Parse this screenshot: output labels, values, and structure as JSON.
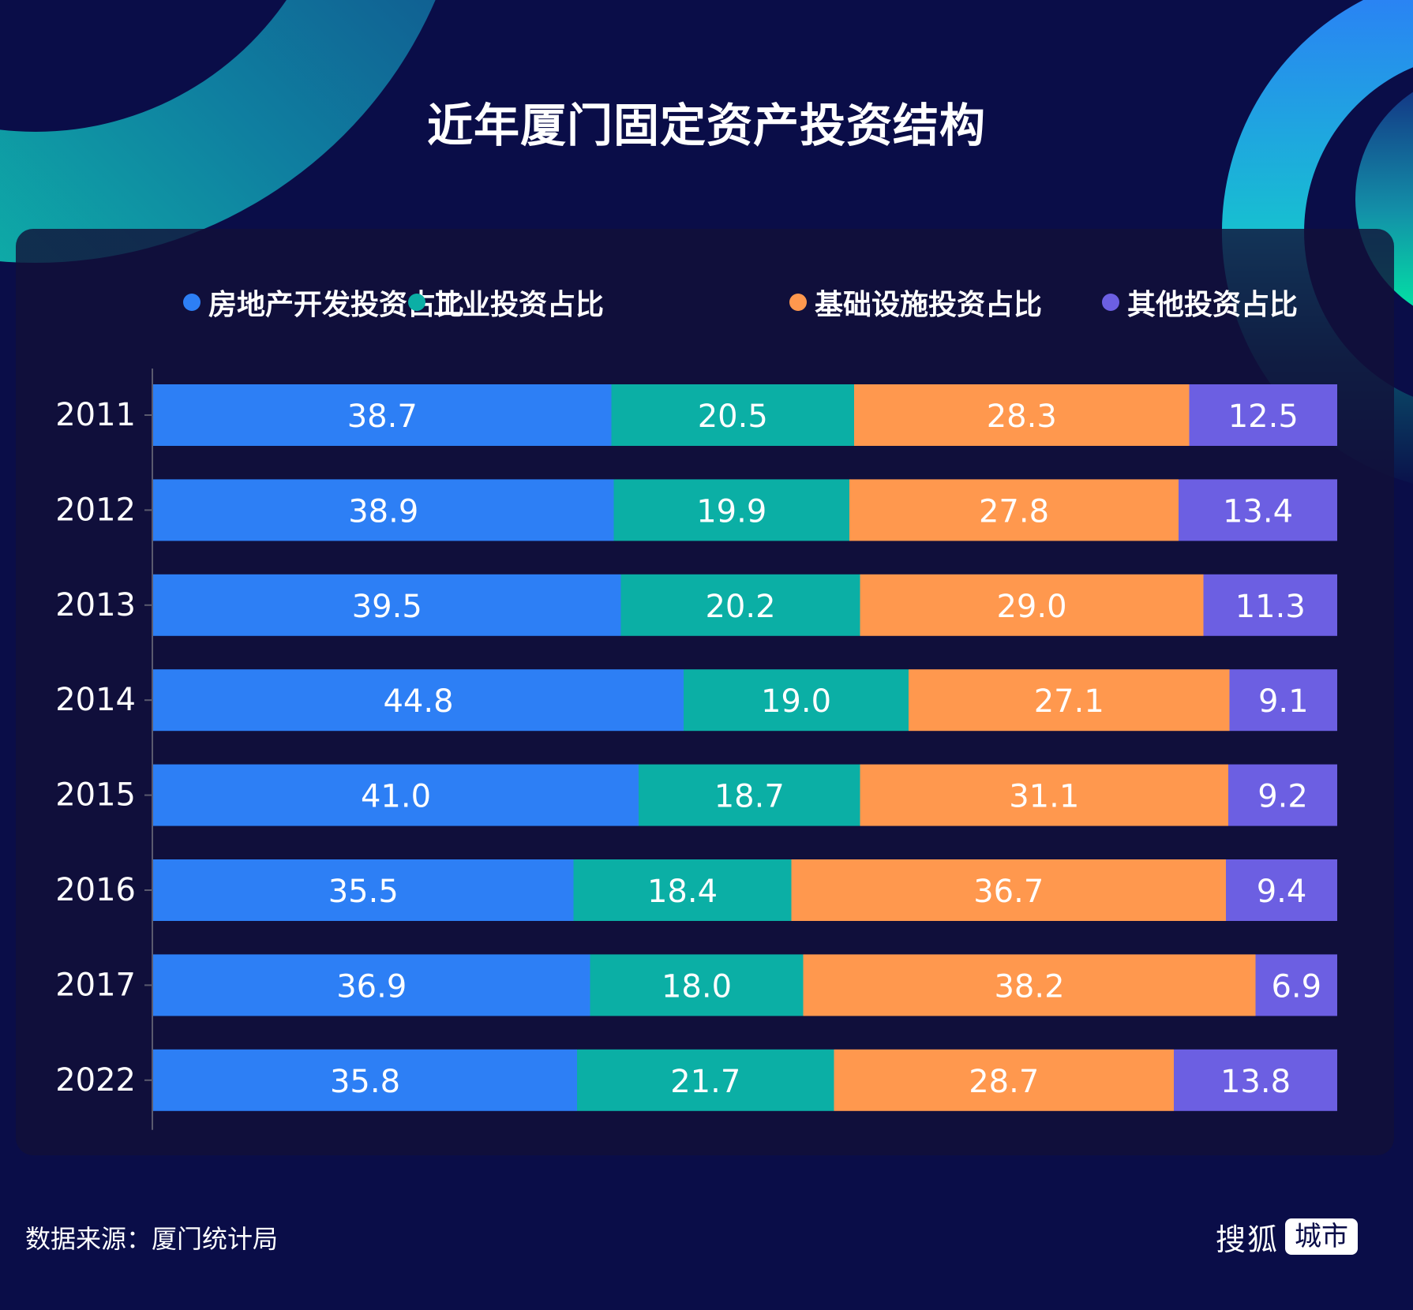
{
  "title": "近年厦门固定资产投资结构",
  "source": "数据来源：厦门统计局",
  "logo": {
    "main": "搜狐",
    "sub": "城市"
  },
  "legend": [
    {
      "label": "房地产开发投资占比",
      "color": "#2D7FF5"
    },
    {
      "label": "工业投资占比",
      "color": "#0BAFA5"
    },
    {
      "label": "基础设施投资占比",
      "color": "#FF984E"
    },
    {
      "label": "其他投资占比",
      "color": "#6C5FE2"
    }
  ],
  "chart_data": {
    "type": "bar",
    "orientation": "horizontal",
    "stacked": true,
    "title": "近年厦门固定资产投资结构",
    "xlabel": "",
    "ylabel": "",
    "xlim": [
      0,
      100
    ],
    "grid": false,
    "legend_position": "top",
    "categories": [
      "2011",
      "2012",
      "2013",
      "2014",
      "2015",
      "2016",
      "2017",
      "2022"
    ],
    "series": [
      {
        "name": "房地产开发投资占比",
        "color": "#2D7FF5",
        "values": [
          38.7,
          38.9,
          39.5,
          44.8,
          41.0,
          35.5,
          36.9,
          35.8
        ]
      },
      {
        "name": "工业投资占比",
        "color": "#0BAFA5",
        "values": [
          20.5,
          19.9,
          20.2,
          19.0,
          18.7,
          18.4,
          18.0,
          21.7
        ]
      },
      {
        "name": "基础设施投资占比",
        "color": "#FF984E",
        "values": [
          28.3,
          27.8,
          29.0,
          27.1,
          31.1,
          36.7,
          38.2,
          28.7
        ]
      },
      {
        "name": "其他投资占比",
        "color": "#6C5FE2",
        "values": [
          12.5,
          13.4,
          11.3,
          9.1,
          9.2,
          9.4,
          6.9,
          13.8
        ]
      }
    ],
    "data_labels": true
  }
}
